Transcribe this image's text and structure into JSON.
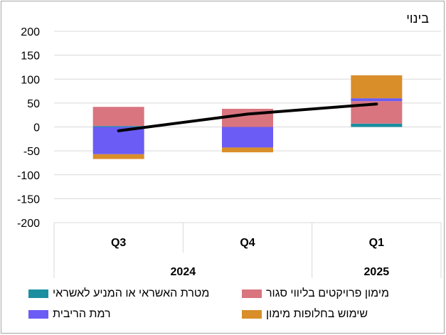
{
  "chart_data": {
    "type": "bar",
    "title": "בינוי",
    "categories": [
      "Q3",
      "Q4",
      "Q1"
    ],
    "years": [
      {
        "label": "2024",
        "span": 2
      },
      {
        "label": "2025",
        "span": 1
      }
    ],
    "ylim": [
      -200,
      200
    ],
    "yticks": [
      200,
      150,
      100,
      50,
      0,
      -50,
      -100,
      -150,
      -200
    ],
    "grid": true,
    "legend_position": "bottom",
    "series": [
      {
        "name": "מטרת האשראי או המניע לאשראי",
        "color": "#1b8fa0",
        "values": [
          2,
          0,
          7
        ]
      },
      {
        "name": "מימון פרויקטים בליווי סגור",
        "color": "#d9757f",
        "values": [
          40,
          38,
          47
        ]
      },
      {
        "name": "רמת הריבית",
        "color": "#6b5cf5",
        "values": [
          -57,
          -43,
          6
        ]
      },
      {
        "name": "שימוש בחלופות מימון",
        "color": "#d98e2a",
        "values": [
          -10,
          -10,
          48
        ]
      }
    ],
    "line": {
      "values": [
        -8,
        27,
        48
      ],
      "color": "#000000"
    }
  }
}
